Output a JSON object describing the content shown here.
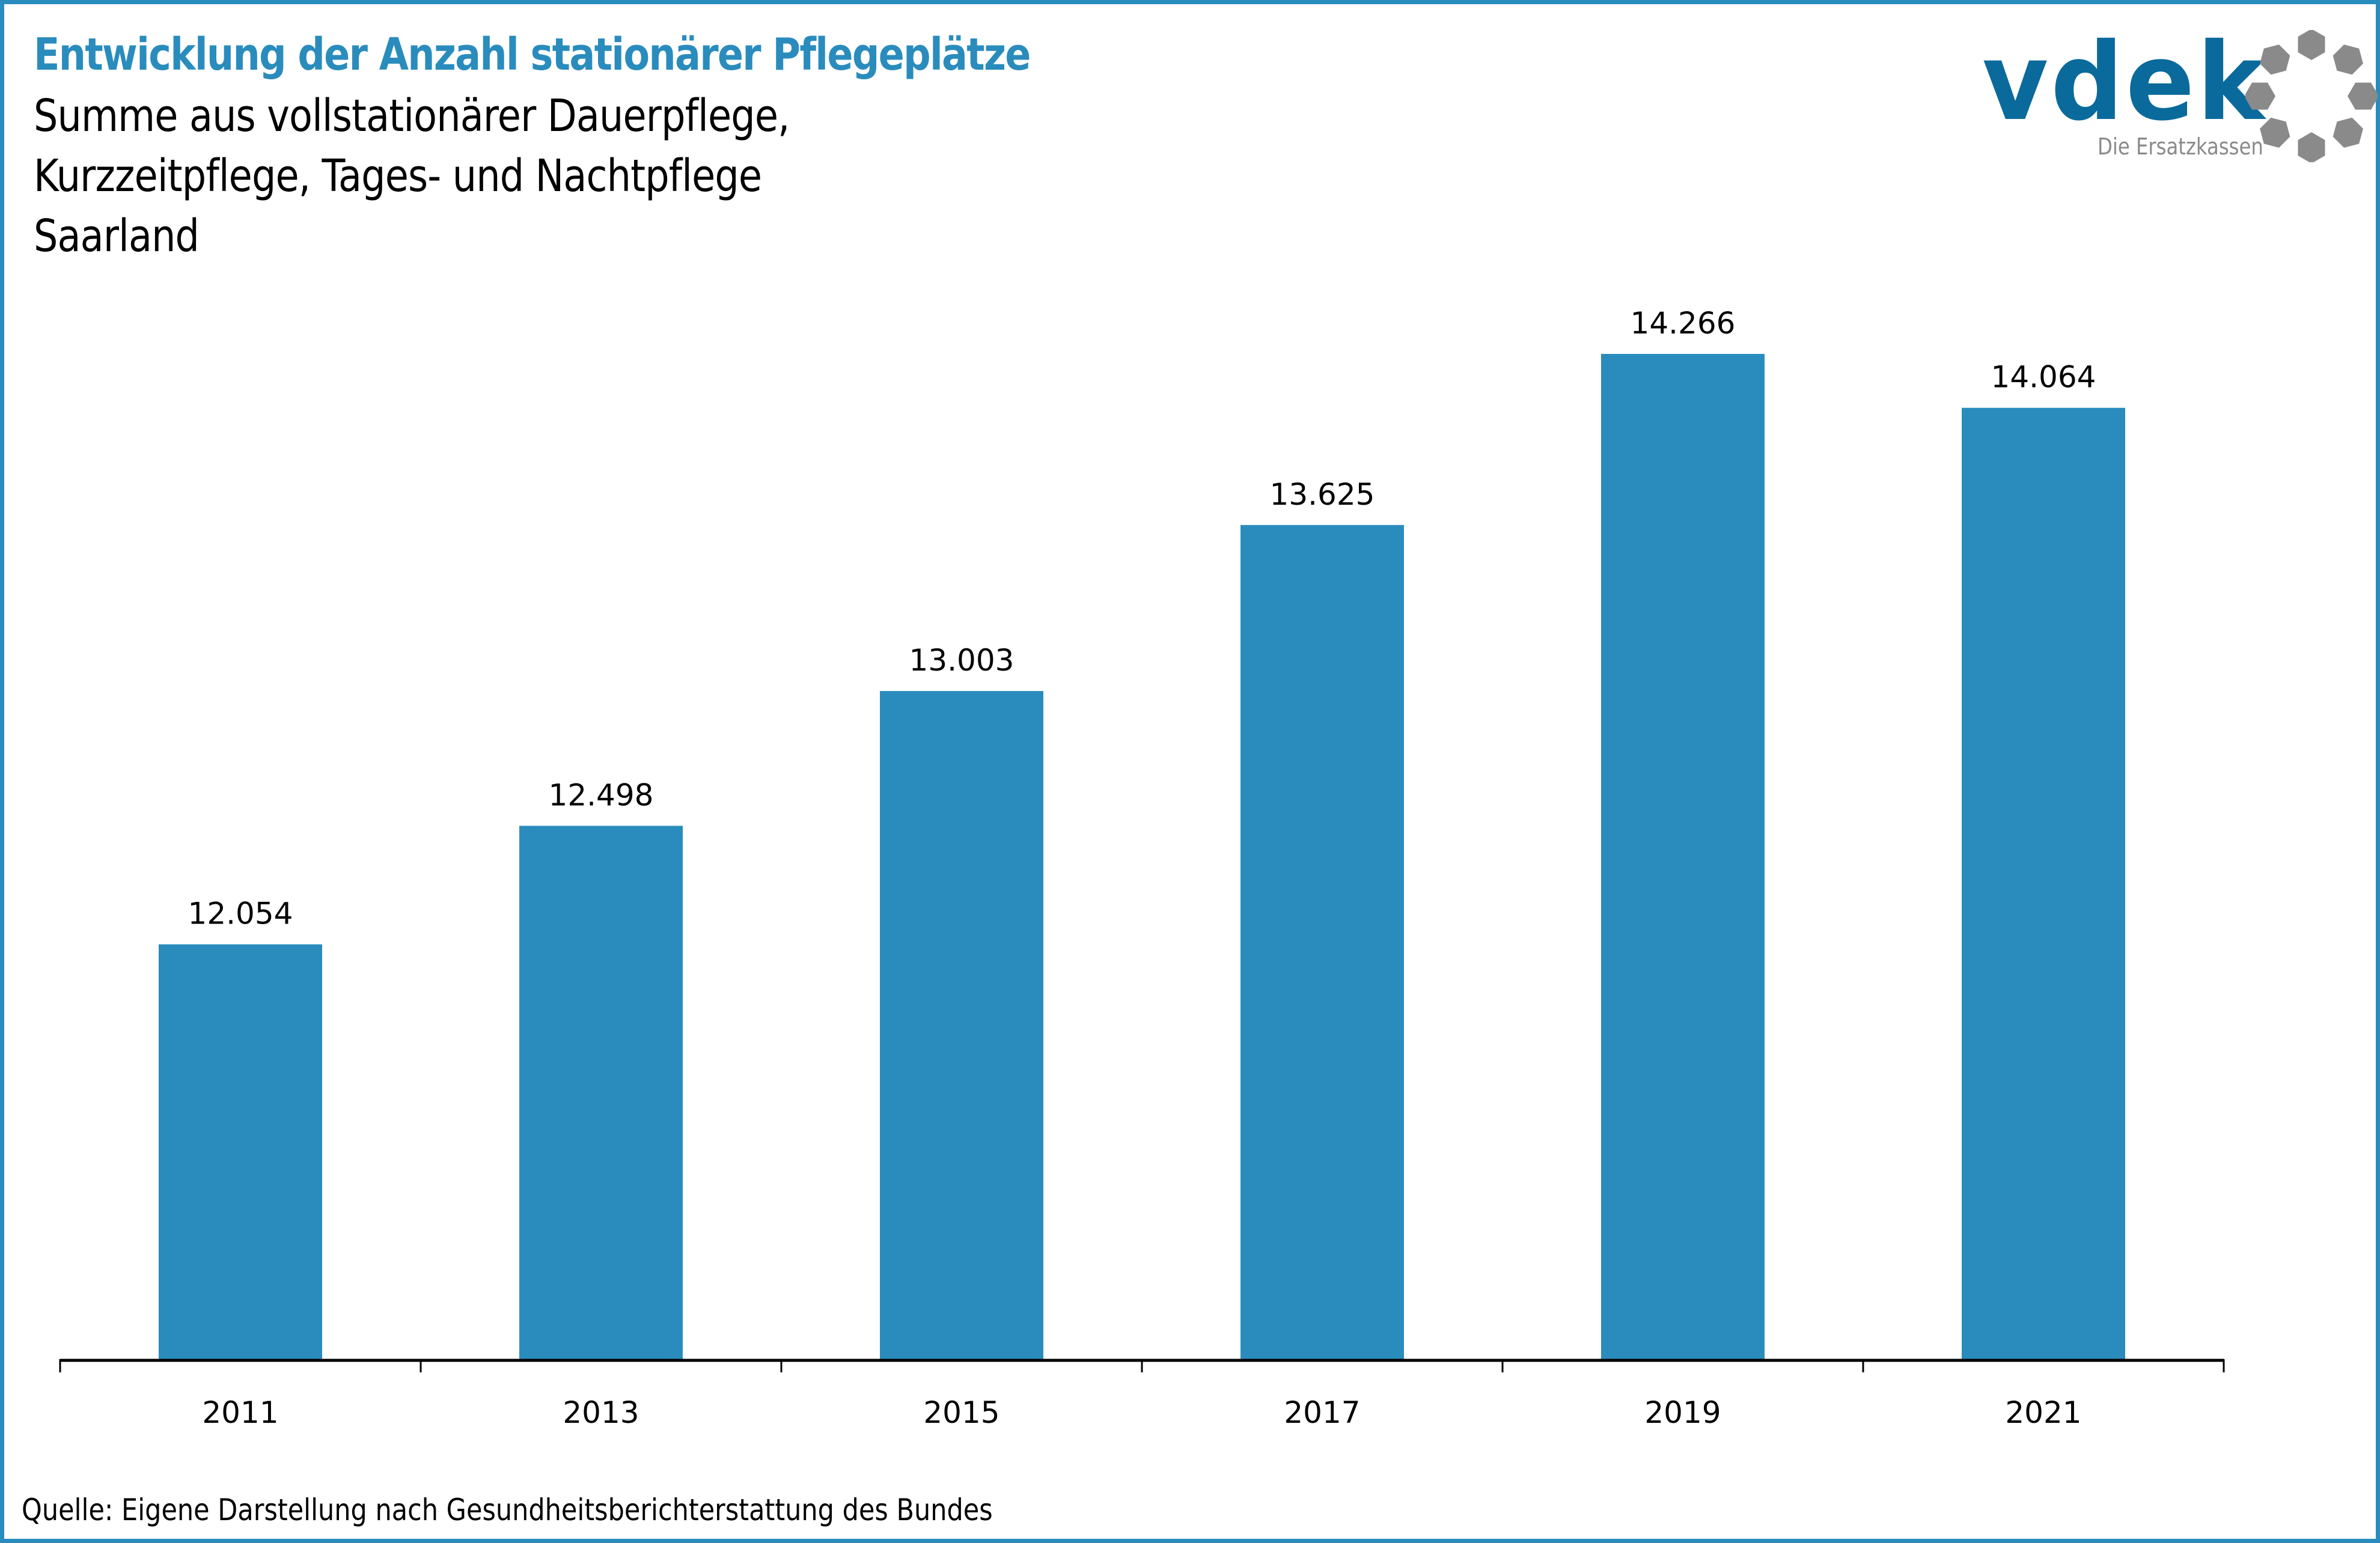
{
  "header": {
    "title": "Entwicklung der Anzahl stationärer Pflegeplätze",
    "subtitle_lines": [
      "Summe aus vollstationärer Dauerpflege,",
      "Kurzzeitpflege, Tages- und Nachtpflege",
      "Saarland"
    ]
  },
  "logo": {
    "wordmark": "vdek",
    "tagline": "Die Ersatzkassen",
    "icon": "ring-of-dots-icon",
    "colors": {
      "wordmark": "#0a6a9c",
      "ring": "#8a8a8a"
    }
  },
  "colors": {
    "accent": "#2a8cbd",
    "bar": "#2a8cbd",
    "axis": "#000000"
  },
  "footer": {
    "source": "Quelle: Eigene Darstellung nach Gesundheitsberichterstattung des Bundes"
  },
  "chart_data": {
    "type": "bar",
    "title": "Entwicklung der Anzahl stationärer Pflegeplätze",
    "subtitle": "Summe aus vollstationärer Dauerpflege, Kurzzeitpflege, Tages- und Nachtpflege – Saarland",
    "categories": [
      "2011",
      "2013",
      "2015",
      "2017",
      "2019",
      "2021"
    ],
    "values": [
      12054,
      12498,
      13003,
      13625,
      14266,
      14064
    ],
    "data_labels": [
      "12.054",
      "12.498",
      "13.003",
      "13.625",
      "14.266",
      "14.064"
    ],
    "xlabel": "",
    "ylabel": "",
    "ylim": [
      10500,
      16000
    ],
    "y_axis_visible": false,
    "grid": false,
    "legend": "none"
  }
}
